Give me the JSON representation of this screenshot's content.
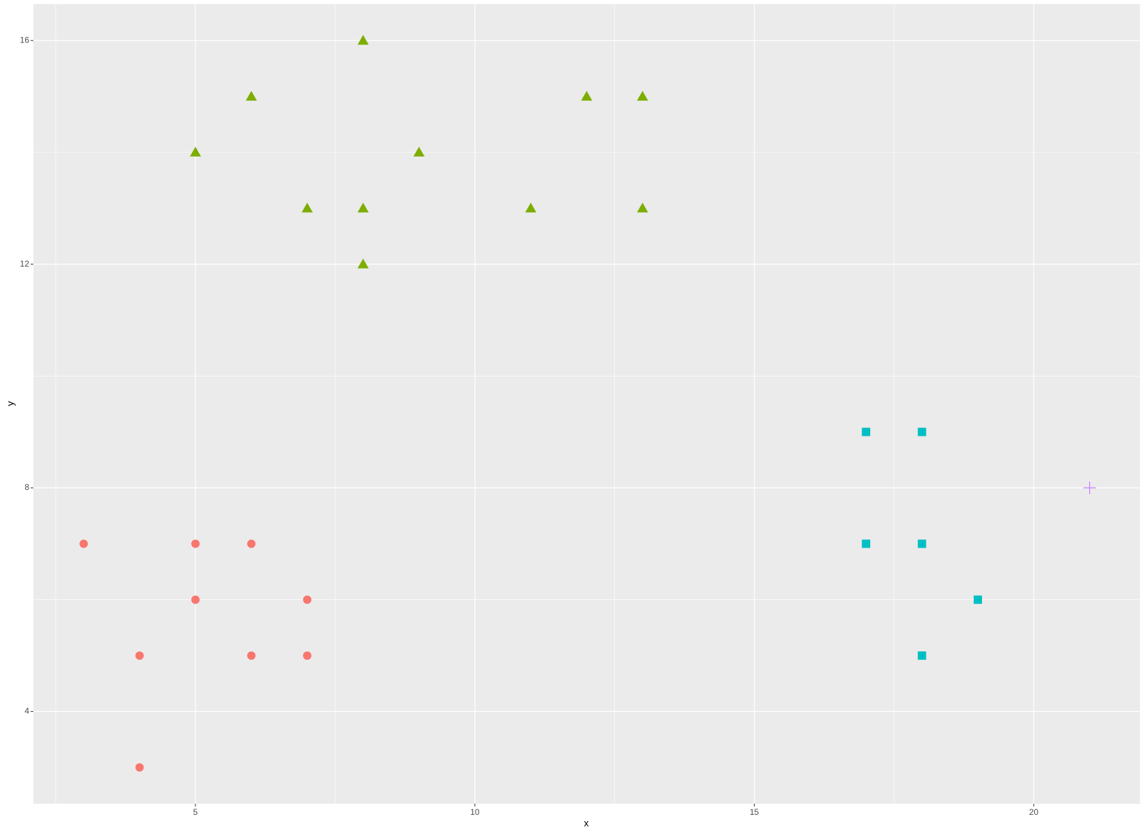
{
  "chart_data": {
    "type": "scatter",
    "x_label": "x",
    "y_label": "y",
    "xlim": [
      2.1,
      21.9
    ],
    "ylim": [
      2.35,
      16.65
    ],
    "xticks": [
      5,
      10,
      15,
      20
    ],
    "yticks": [
      4,
      8,
      12,
      16
    ],
    "x_minor_ticks": [
      2.5,
      7.5,
      12.5,
      17.5
    ],
    "y_minor_ticks": [
      6,
      10,
      14
    ],
    "grid": true,
    "background": "#EBEBEB",
    "series": [
      {
        "color": "#F8766D",
        "shape": "circle",
        "x": [
          3,
          4,
          4,
          5,
          5,
          6,
          6,
          7,
          7
        ],
        "values": [
          7,
          5,
          3,
          7,
          6,
          7,
          5,
          6,
          5
        ]
      },
      {
        "color": "#7CAE00",
        "shape": "triangle",
        "x": [
          5,
          6,
          7,
          8,
          8,
          8,
          9,
          11,
          12,
          13,
          13
        ],
        "values": [
          14,
          15,
          13,
          16,
          13,
          12,
          14,
          13,
          15,
          15,
          13
        ]
      },
      {
        "color": "#00BFC4",
        "shape": "square",
        "x": [
          17,
          18,
          17,
          18,
          19,
          18
        ],
        "values": [
          9,
          9,
          7,
          7,
          6,
          5
        ]
      },
      {
        "color": "#C77CFF",
        "shape": "plus",
        "x": [
          21
        ],
        "values": [
          8
        ]
      }
    ]
  }
}
